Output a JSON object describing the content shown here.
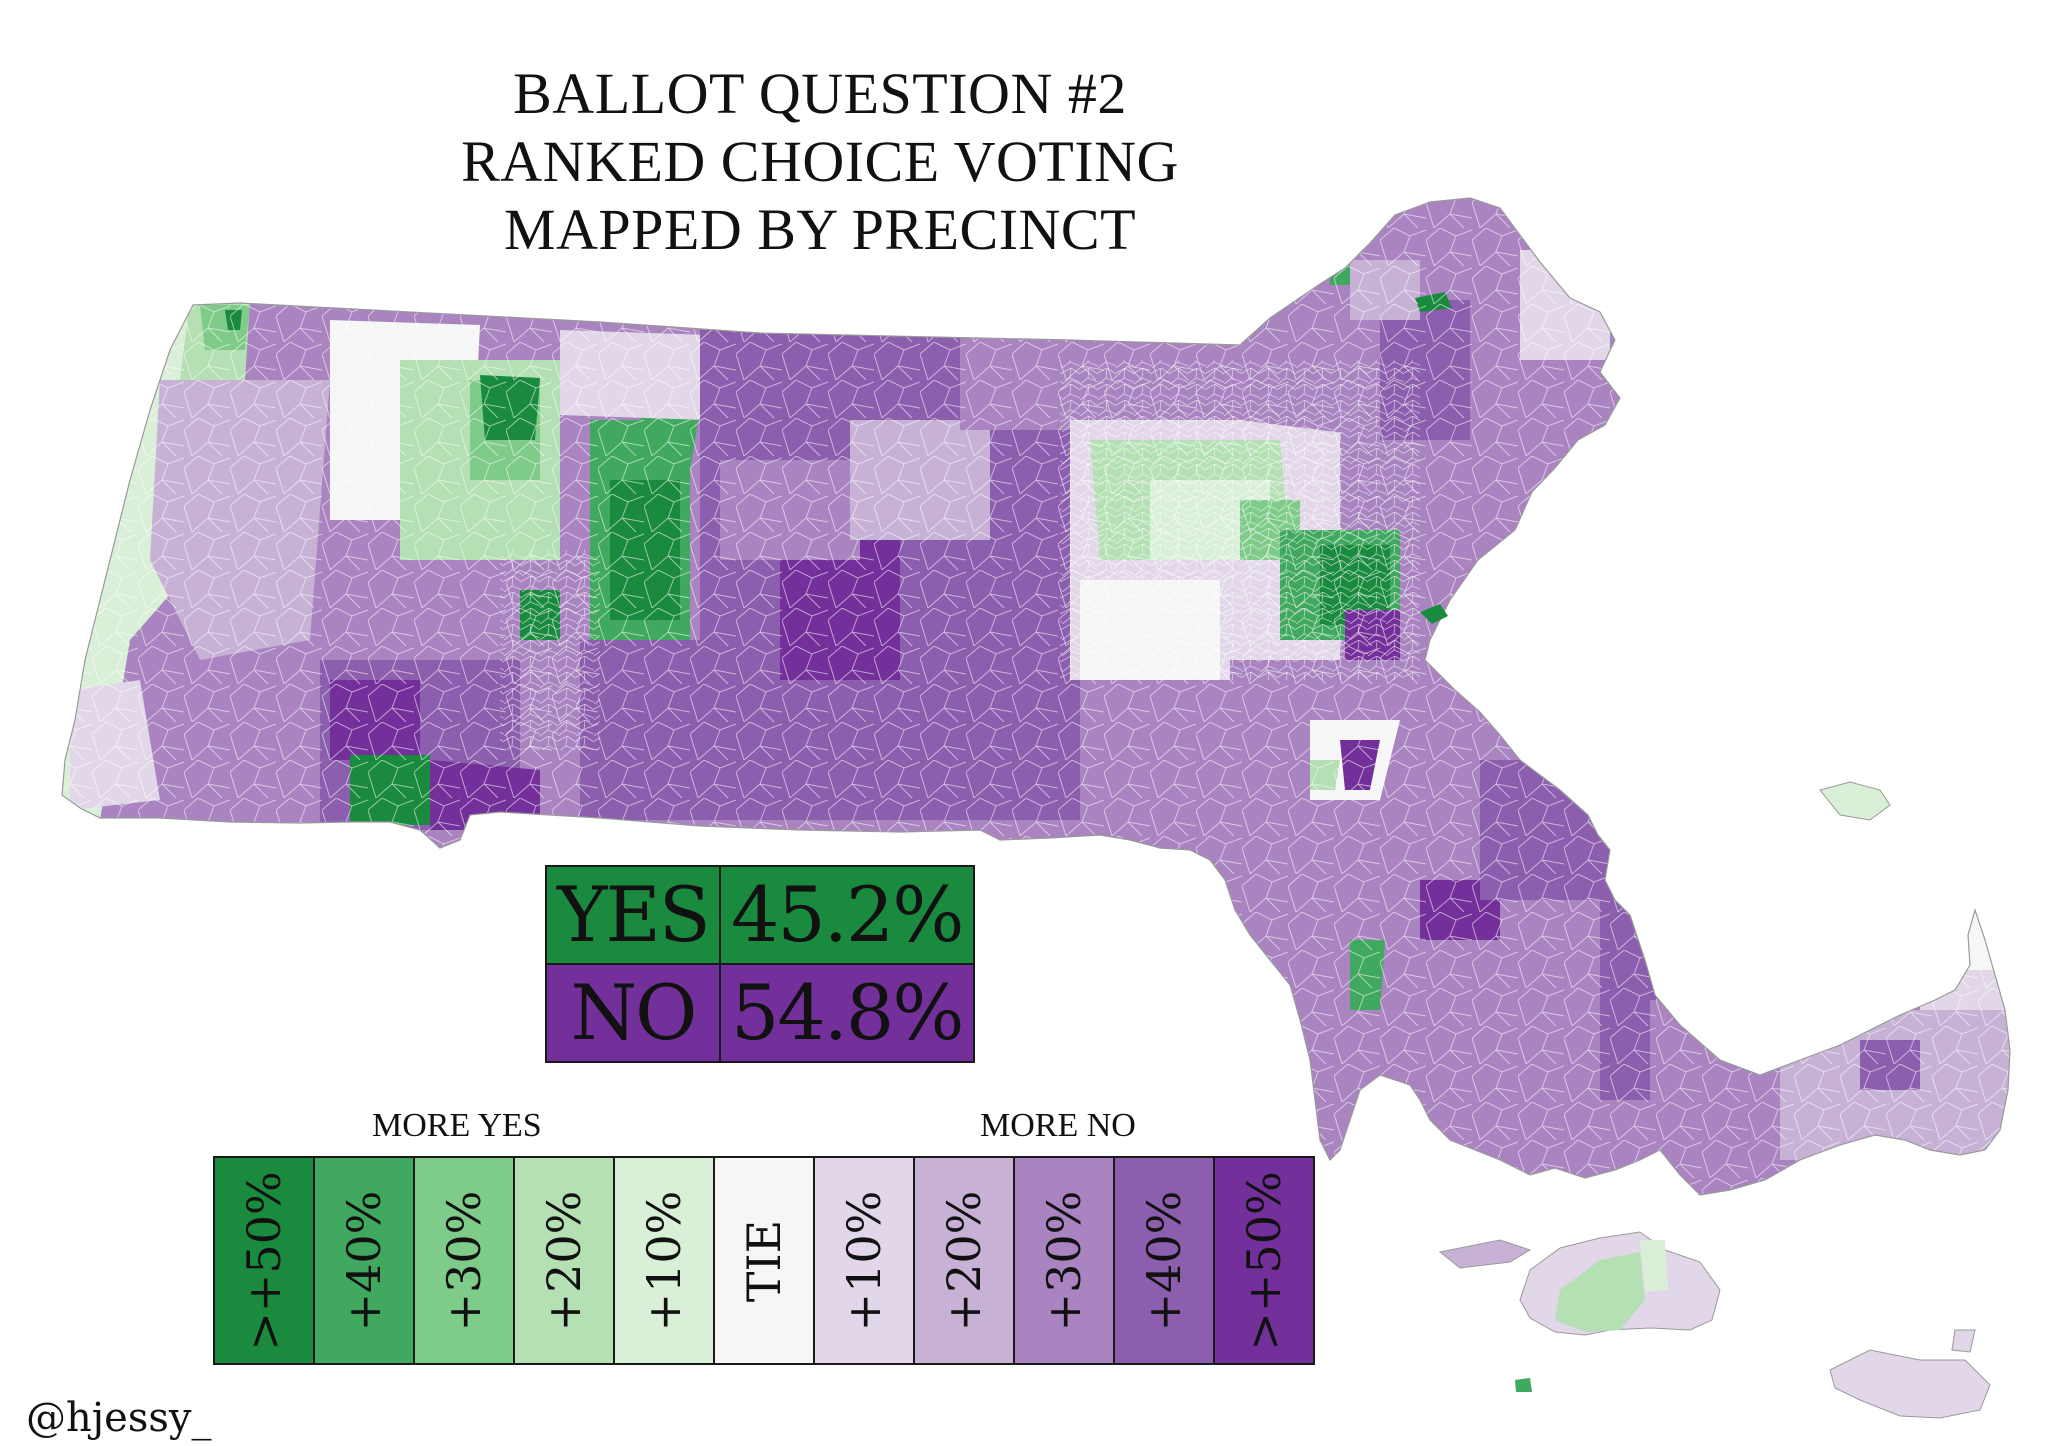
{
  "title": {
    "line1": "BALLOT QUESTION #2",
    "line2": "RANKED CHOICE VOTING",
    "line3": "MAPPED BY PRECINCT"
  },
  "results": {
    "yes_label": "YES",
    "yes_value": "45.2%",
    "no_label": "NO",
    "no_value": "54.8%"
  },
  "legend": {
    "more_yes": "MORE YES",
    "more_no": "MORE NO",
    "bins": [
      {
        "label": ">+50%",
        "color": "#1a8a3f"
      },
      {
        "label": "+40%",
        "color": "#41a85f"
      },
      {
        "label": "+30%",
        "color": "#7fcb8a"
      },
      {
        "label": "+20%",
        "color": "#b4e0b3"
      },
      {
        "label": "+10%",
        "color": "#d9efd8"
      },
      {
        "label": "TIE",
        "color": "#f6f6f6"
      },
      {
        "label": "+10%",
        "color": "#e2d7e8"
      },
      {
        "label": "+20%",
        "color": "#c7b2d6"
      },
      {
        "label": "+30%",
        "color": "#a984c1"
      },
      {
        "label": "+40%",
        "color": "#8c5eae"
      },
      {
        "label": ">+50%",
        "color": "#74309a"
      }
    ]
  },
  "colors": {
    "yes": "#1a8a3f",
    "no": "#74309a",
    "boundary": "#ffffff"
  },
  "credit": "@hjessy_"
}
